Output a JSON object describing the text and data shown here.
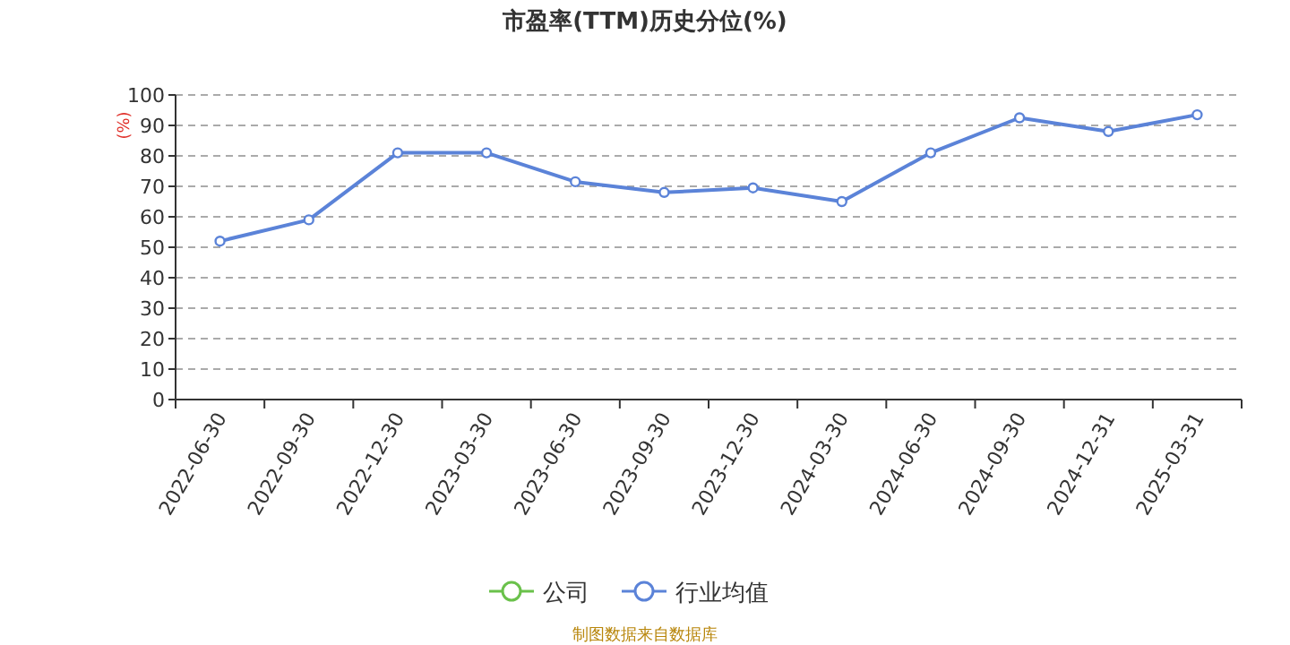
{
  "chart_data": {
    "type": "line",
    "title": "市盈率(TTM)历史分位(%)",
    "ylabel": "(%)",
    "categories": [
      "2022-06-30",
      "2022-09-30",
      "2022-12-30",
      "2023-03-30",
      "2023-06-30",
      "2023-09-30",
      "2023-12-30",
      "2024-03-30",
      "2024-06-30",
      "2024-09-30",
      "2024-12-31",
      "2025-03-31"
    ],
    "series": [
      {
        "name": "公司",
        "color": "#6ac14b",
        "values": [
          null,
          null,
          null,
          null,
          null,
          null,
          null,
          null,
          null,
          null,
          null,
          null
        ]
      },
      {
        "name": "行业均值",
        "color": "#5b83d8",
        "values": [
          52,
          59,
          81,
          81,
          71.5,
          68,
          69.5,
          65,
          81,
          92.5,
          88,
          93.5
        ]
      }
    ],
    "ylim": [
      0,
      100
    ],
    "yticks": [
      0,
      10,
      20,
      30,
      40,
      50,
      60,
      70,
      80,
      90,
      100
    ],
    "grid": "y",
    "legend": "bottom",
    "marker": "circle",
    "line_style": "solid",
    "annotations": [
      "制图数据来自数据库"
    ]
  }
}
